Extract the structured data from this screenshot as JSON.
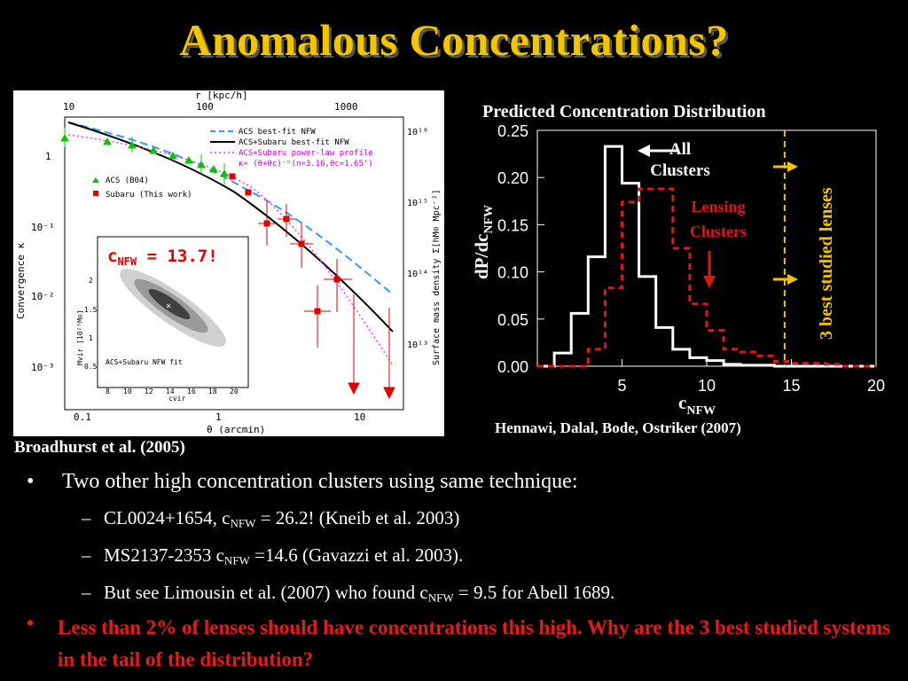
{
  "slide": {
    "title": "Anomalous Concentrations?",
    "left_figure": {
      "credit": "Broadhurst et al.  (2005)",
      "top_axis_label": "r [kpc/h]",
      "top_ticks": [
        "10",
        "100",
        "1000"
      ],
      "bottom_axis_label": "θ (arcmin)",
      "bottom_ticks": [
        "0.1",
        "1",
        "10"
      ],
      "left_axis_label": "Convergence κ",
      "left_ticks": [
        "1",
        "10⁻¹",
        "10⁻²",
        "10⁻³"
      ],
      "right_axis_label": "Surface mass density Σ[hM⊙ Mpc⁻²]",
      "right_ticks": [
        "10¹⁶",
        "10¹⁵",
        "10¹⁴",
        "10¹³"
      ],
      "legend_top": [
        "ACS best-fit NFW",
        "ACS+Subaru best-fit NFW",
        "ACS+Subaru power-law profile",
        "κ∝ (θ+θc)⁻ⁿ(n=3.16,θc=1.65')"
      ],
      "legend_bottom": [
        "ACS (B04)",
        "Subaru (This work)"
      ],
      "inset": {
        "annotation": "cNFW = 13.7!",
        "annotation_main": "c",
        "annotation_sub": "NFW",
        "annotation_rest": " = 13.7!",
        "caption": "ACS+Subaru NFW fit",
        "ylabel": "Mvir [10¹⁵M⊙]",
        "xlabel": "cvir",
        "xticks": [
          "8",
          "10",
          "12",
          "14",
          "16",
          "18",
          "20"
        ],
        "yticks": [
          "2",
          "1.5",
          "1",
          "0.5"
        ]
      },
      "colors": {
        "acs": "#00c800",
        "subaru": "#e00000",
        "nfw_dash": "#3399ff",
        "powerlaw": "#ff33ff"
      }
    },
    "right_figure": {
      "title": "Predicted Concentration Distribution",
      "credit": "Hennawi, Dalal, Bode, Ostriker  (2007)",
      "label_all": "All Clusters",
      "label_all_1": "All",
      "label_all_2": "Clusters",
      "label_lensing_1": "Lensing",
      "label_lensing_2": "Clusters",
      "vertical_text": "3 best studied lenses",
      "ylabel_main": "dP/dc",
      "ylabel_sub": "NFW",
      "xlabel_main": "c",
      "xlabel_sub": "NFW",
      "colors": {
        "all": "#ffffff",
        "lensing": "#e0161a",
        "highlight": "#f5c400"
      }
    },
    "bullets": {
      "b1": "Two other high concentration clusters using same technique:",
      "s1_a": "CL0024+1654, c",
      "s1_sub": "NFW",
      "s1_b": " = 26.2! (Kneib et al. 2003)",
      "s2_a": "MS2137-2353 c",
      "s2_sub": "NFW",
      "s2_b": " =14.6 (Gavazzi et al. 2003).",
      "s3_a": "But see Limousin et al. (2007) who found c",
      "s3_sub": "NFW",
      "s3_b": " = 9.5 for Abell 1689.",
      "red": "Less than 2% of lenses should have concentrations this high. Why are the 3 best studied systems in the tail of the distribution?",
      "bullet_char": "•",
      "dash_char": "–"
    }
  },
  "chart_data": {
    "type": "line",
    "title": "Predicted Concentration Distribution",
    "xlabel": "cNFW",
    "ylabel": "dP/dcNFW",
    "xlim": [
      0,
      20
    ],
    "ylim": [
      0,
      0.25
    ],
    "xticks": [
      "5",
      "10",
      "15",
      "20"
    ],
    "yticks": [
      "0.00",
      "0.05",
      "0.10",
      "0.15",
      "0.20",
      "0.25"
    ],
    "bin_edges": [
      0,
      1,
      2,
      3,
      4,
      5,
      6,
      7,
      8,
      9,
      10,
      11,
      12,
      13,
      14,
      15,
      16,
      17,
      18,
      19,
      20
    ],
    "series": [
      {
        "name": "All Clusters",
        "style": "solid-white-step",
        "values": [
          0,
          0.014,
          0.056,
          0.116,
          0.233,
          0.194,
          0.095,
          0.041,
          0.018,
          0.009,
          0.006,
          0.002,
          0.001,
          0.001,
          0,
          0,
          0,
          0,
          0,
          0
        ]
      },
      {
        "name": "Lensing Clusters",
        "style": "dashed-red-step",
        "values": [
          0,
          0,
          0,
          0.018,
          0.083,
          0.174,
          0.188,
          0.188,
          0.125,
          0.066,
          0.038,
          0.018,
          0.015,
          0.011,
          0.005,
          0.003,
          0.003,
          0.002,
          0,
          0
        ]
      }
    ],
    "marker_x": 14.6
  }
}
